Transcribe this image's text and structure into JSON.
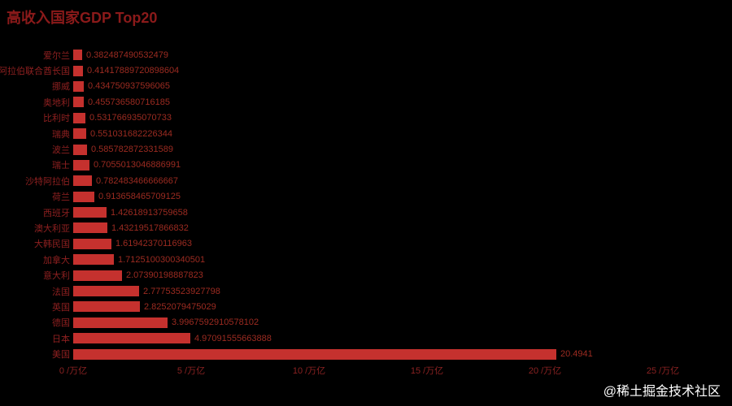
{
  "title": "高收入国家GDP Top20",
  "watermark": "@稀土掘金技术社区",
  "chart_data": {
    "type": "bar",
    "orientation": "horizontal",
    "title": "高收入国家GDP Top20",
    "xlabel": "/万亿",
    "ylabel": "",
    "xlim": [
      0,
      25
    ],
    "grid": false,
    "bar_color": "#c5312e",
    "background": "#000000",
    "categories": [
      "爱尔兰",
      "阿拉伯联合酋长国",
      "挪威",
      "奥地利",
      "比利时",
      "瑞典",
      "波兰",
      "瑞士",
      "沙特阿拉伯",
      "荷兰",
      "西班牙",
      "澳大利亚",
      "大韩民国",
      "加拿大",
      "意大利",
      "法国",
      "英国",
      "德国",
      "日本",
      "美国"
    ],
    "values": [
      0.382487490532479,
      0.41417889720898604,
      0.434750937596065,
      0.455736580716185,
      0.531766935070733,
      0.551031682226344,
      0.585782872331589,
      0.7055013046886991,
      0.782483466666667,
      0.913658465709125,
      1.42618913759658,
      1.43219517866832,
      1.61942370116963,
      1.7125100300340501,
      2.07390198887823,
      2.77753523927798,
      2.8252079475029,
      3.9967592910578102,
      4.97091555663888,
      20.4941
    ],
    "value_labels": [
      "0.382487490532479",
      "0.41417889720898604",
      "0.434750937596065",
      "0.455736580716185",
      "0.531766935070733",
      "0.551031682226344",
      "0.585782872331589",
      "0.7055013046886991",
      "0.782483466666667",
      "0.913658465709125",
      "1.42618913759658",
      "1.43219517866832",
      "1.61942370116963",
      "1.7125100300340501",
      "2.07390198887823",
      "2.77753523927798",
      "2.8252079475029",
      "3.9967592910578102",
      "4.97091555663888",
      "20.4941"
    ],
    "x_ticks": [
      "0 /万亿",
      "5 /万亿",
      "10 /万亿",
      "15 /万亿",
      "20 /万亿",
      "25 /万亿"
    ]
  }
}
